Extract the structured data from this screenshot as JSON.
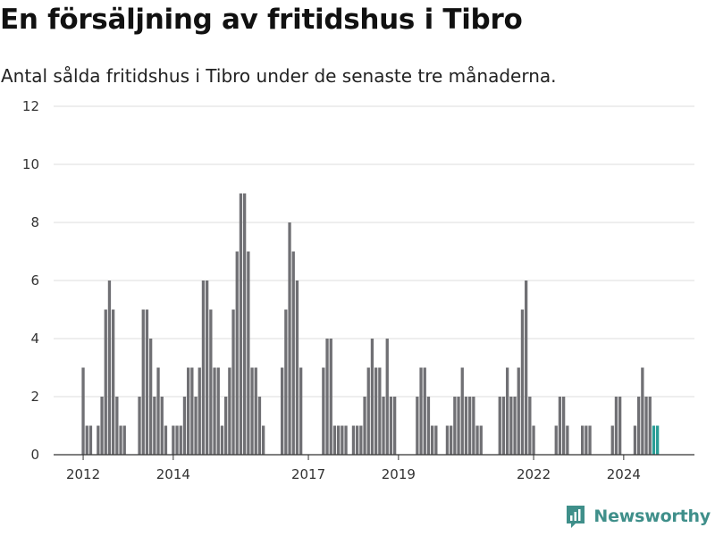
{
  "title": "En försäljning av fritidshus i Tibro",
  "subtitle": "Antal sålda fritidshus i Tibro under de senaste tre månaderna.",
  "brand": {
    "name": "Newsworthy",
    "icon": "chart-logo-icon",
    "color": "#3f8f8a"
  },
  "colors": {
    "bar": "#707074",
    "highlight": "#2a9d96",
    "grid": "#dddddd",
    "axis": "#333333"
  },
  "chart_data": {
    "type": "bar",
    "x_start": "2011-12",
    "ylim": [
      0,
      12
    ],
    "yticks": [
      0,
      2,
      4,
      6,
      8,
      10,
      12
    ],
    "xticks": [
      {
        "label": "2012",
        "index": 1
      },
      {
        "label": "2014",
        "index": 25
      },
      {
        "label": "2017",
        "index": 61
      },
      {
        "label": "2019",
        "index": 85
      },
      {
        "label": "2022",
        "index": 121
      },
      {
        "label": "2024",
        "index": 145
      }
    ],
    "values": [
      0,
      3,
      1,
      1,
      0,
      1,
      2,
      5,
      6,
      5,
      2,
      1,
      1,
      0,
      0,
      0,
      2,
      5,
      5,
      4,
      2,
      3,
      2,
      1,
      0,
      1,
      1,
      1,
      2,
      3,
      3,
      2,
      3,
      6,
      6,
      5,
      3,
      3,
      1,
      2,
      3,
      5,
      7,
      9,
      9,
      7,
      3,
      3,
      2,
      1,
      0,
      0,
      0,
      0,
      3,
      5,
      8,
      7,
      6,
      3,
      0,
      0,
      0,
      0,
      0,
      3,
      4,
      4,
      1,
      1,
      1,
      1,
      0,
      1,
      1,
      1,
      2,
      3,
      4,
      3,
      3,
      2,
      4,
      2,
      2,
      0,
      0,
      0,
      0,
      0,
      2,
      3,
      3,
      2,
      1,
      1,
      0,
      0,
      1,
      1,
      2,
      2,
      3,
      2,
      2,
      2,
      1,
      1,
      0,
      0,
      0,
      0,
      2,
      2,
      3,
      2,
      2,
      3,
      5,
      6,
      2,
      1,
      0,
      0,
      0,
      0,
      0,
      1,
      2,
      2,
      1,
      0,
      0,
      0,
      1,
      1,
      1,
      0,
      0,
      0,
      0,
      0,
      1,
      2,
      2,
      0,
      0,
      0,
      1,
      2,
      3,
      2,
      2,
      1,
      1
    ],
    "highlight_last": 2,
    "annotation": {
      "text": "1",
      "index": 155
    }
  }
}
